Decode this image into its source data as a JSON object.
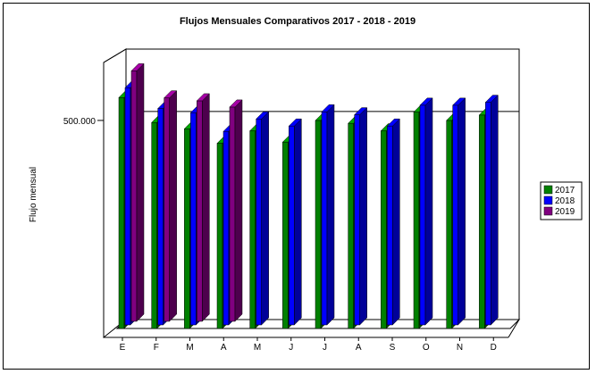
{
  "chart_data": {
    "type": "bar",
    "title": "Flujos Mensuales Comparativos 2017 - 2018 - 2019",
    "ylabel": "Flujo mensual",
    "xlabel": "",
    "categories": [
      "E",
      "F",
      "M",
      "A",
      "M",
      "J",
      "J",
      "A",
      "S",
      "O",
      "N",
      "D"
    ],
    "y_tick_labels": [
      {
        "value": 500000,
        "label": "500.000"
      }
    ],
    "ylim": [
      0,
      650000
    ],
    "legend_position": "right",
    "grid": true,
    "series": [
      {
        "name": "2017",
        "color": "#008000",
        "values": [
          555000,
          495000,
          480000,
          445000,
          475000,
          448000,
          500000,
          493000,
          475000,
          520000,
          500000,
          513000
        ]
      },
      {
        "name": "2018",
        "color": "#0000ff",
        "values": [
          570000,
          520000,
          510000,
          465000,
          495000,
          478000,
          512000,
          505000,
          478000,
          528000,
          528000,
          535000
        ]
      },
      {
        "name": "2019",
        "color": "#800080",
        "values": [
          602000,
          537000,
          530000,
          515000,
          null,
          null,
          null,
          null,
          null,
          null,
          null,
          null
        ]
      }
    ]
  }
}
